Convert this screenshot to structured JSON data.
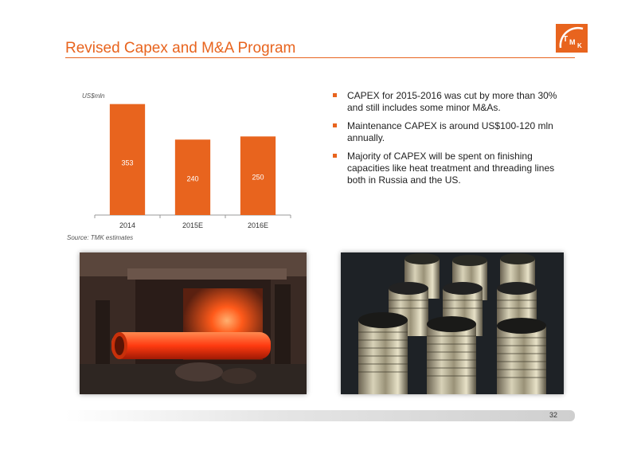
{
  "slide": {
    "title": "Revised Capex and M&A Program",
    "page_number": "32",
    "logo_text": "TMK",
    "accent_color": "#e8641e"
  },
  "chart_data": {
    "type": "bar",
    "categories": [
      "2014",
      "2015E",
      "2016E"
    ],
    "values": [
      353,
      240,
      250
    ],
    "ylabel": "US$mln",
    "source": "Source: TMK estimates",
    "bar_color": "#e8641e",
    "ylim": [
      0,
      380
    ],
    "data_labels": true
  },
  "bullets": [
    "CAPEX for 2015-2016 was cut by more than 30% and still includes some minor M&As.",
    "Maintenance CAPEX is around US$100-120 mln annually.",
    "Majority of CAPEX will be spent on finishing capacities like heat treatment and threading lines both in Russia and the US."
  ],
  "images": [
    {
      "icon": "furnace-pipe-photo"
    },
    {
      "icon": "threaded-pipe-ends-photo"
    }
  ]
}
